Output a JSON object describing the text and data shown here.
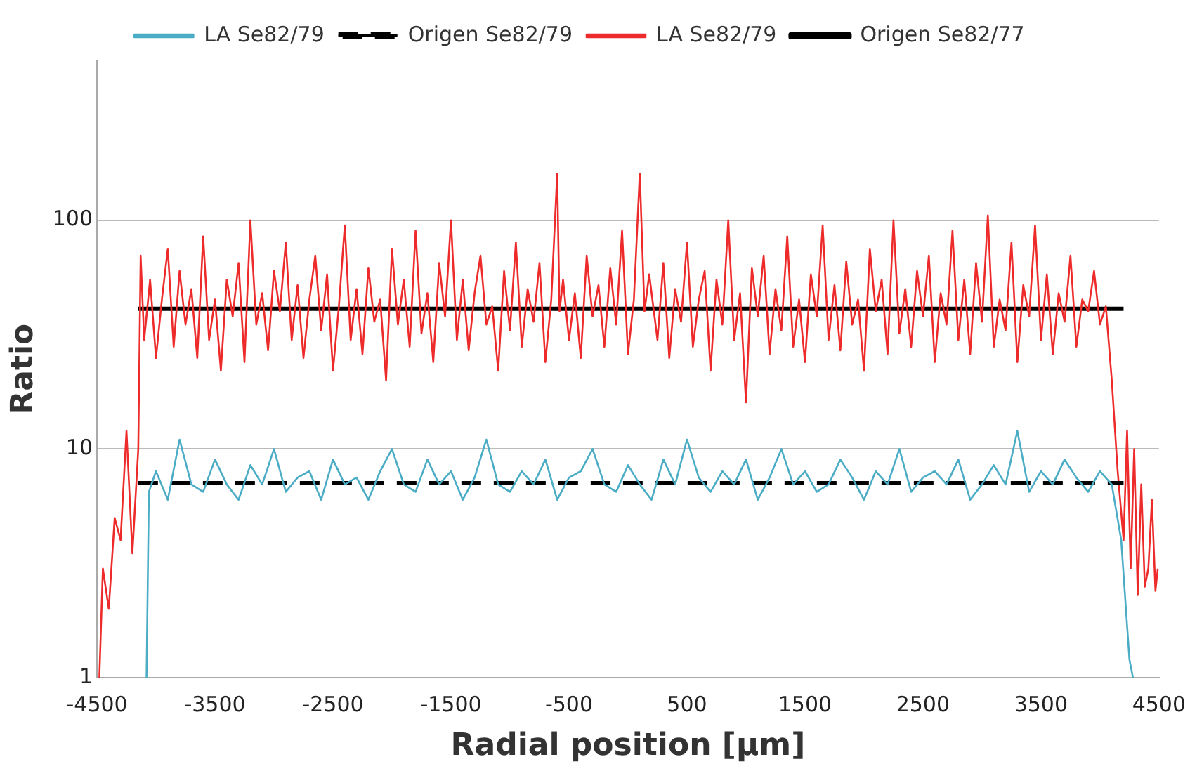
{
  "chart_data": {
    "type": "line",
    "xlabel": "Radial position [µm]",
    "ylabel": "Ratio",
    "log": "y",
    "grid": "y",
    "legend": "top",
    "marker": "none",
    "xlim": [
      -4500,
      4500
    ],
    "xticks": [
      -4500,
      -3500,
      -2500,
      -1500,
      -500,
      500,
      1500,
      2500,
      3500,
      4500
    ],
    "ylim": [
      1,
      500
    ],
    "yticks": [
      1,
      10,
      100
    ],
    "series": [
      {
        "name": "LA Se82/79",
        "color": "#4bacc6",
        "line_style": "solid",
        "x": [
          -4080,
          -4060,
          -4000,
          -3900,
          -3800,
          -3700,
          -3600,
          -3500,
          -3400,
          -3300,
          -3200,
          -3100,
          -3000,
          -2900,
          -2800,
          -2700,
          -2600,
          -2500,
          -2400,
          -2300,
          -2200,
          -2100,
          -2000,
          -1900,
          -1800,
          -1700,
          -1600,
          -1500,
          -1400,
          -1300,
          -1200,
          -1100,
          -1000,
          -900,
          -800,
          -700,
          -600,
          -500,
          -400,
          -300,
          -200,
          -100,
          0,
          100,
          200,
          300,
          400,
          500,
          600,
          700,
          800,
          900,
          1000,
          1100,
          1200,
          1300,
          1400,
          1500,
          1600,
          1700,
          1800,
          1900,
          2000,
          2100,
          2200,
          2300,
          2400,
          2500,
          2600,
          2700,
          2800,
          2900,
          3000,
          3100,
          3200,
          3300,
          3400,
          3500,
          3600,
          3700,
          3800,
          3900,
          4000,
          4100,
          4180,
          4220,
          4250,
          4280
        ],
        "values": [
          1,
          6.5,
          8,
          6,
          11,
          7,
          6.5,
          9,
          7,
          6,
          8.5,
          7,
          10,
          6.5,
          7.5,
          8,
          6,
          9,
          7,
          7.5,
          6,
          8,
          10,
          7,
          6.5,
          9,
          7,
          8,
          6,
          7.5,
          11,
          7,
          6.5,
          8,
          7,
          9,
          6,
          7.5,
          8,
          10,
          7,
          6.5,
          8.5,
          7,
          6,
          9,
          7,
          11,
          7.5,
          6.5,
          8,
          7,
          9,
          6,
          7.5,
          10,
          7,
          8,
          6.5,
          7,
          9,
          7.5,
          6,
          8,
          7,
          10,
          6.5,
          7.5,
          8,
          7,
          9,
          6,
          7,
          8.5,
          7,
          12,
          6.5,
          8,
          7,
          9,
          7.5,
          6.5,
          8,
          7,
          4,
          2,
          1.2,
          1
        ]
      },
      {
        "name": "Origen Se82/79",
        "color": "#000000",
        "line_style": "dashed",
        "x": [
          -4150,
          4200
        ],
        "values": [
          7.1,
          7.1
        ]
      },
      {
        "name": "LA Se82/79",
        "color": "#ee2b2b",
        "line_style": "solid",
        "x": [
          -4480,
          -4450,
          -4400,
          -4350,
          -4300,
          -4250,
          -4200,
          -4150,
          -4130,
          -4100,
          -4050,
          -4000,
          -3950,
          -3900,
          -3850,
          -3800,
          -3750,
          -3700,
          -3650,
          -3600,
          -3550,
          -3500,
          -3450,
          -3400,
          -3350,
          -3300,
          -3250,
          -3200,
          -3150,
          -3100,
          -3050,
          -3000,
          -2950,
          -2900,
          -2850,
          -2800,
          -2750,
          -2700,
          -2650,
          -2600,
          -2550,
          -2500,
          -2450,
          -2400,
          -2350,
          -2300,
          -2250,
          -2200,
          -2150,
          -2100,
          -2050,
          -2000,
          -1950,
          -1900,
          -1850,
          -1800,
          -1750,
          -1700,
          -1650,
          -1600,
          -1550,
          -1500,
          -1450,
          -1400,
          -1350,
          -1300,
          -1250,
          -1200,
          -1150,
          -1100,
          -1050,
          -1000,
          -950,
          -900,
          -850,
          -800,
          -750,
          -700,
          -650,
          -600,
          -580,
          -550,
          -500,
          -450,
          -400,
          -350,
          -300,
          -250,
          -200,
          -150,
          -100,
          -50,
          0,
          50,
          100,
          140,
          180,
          250,
          300,
          350,
          400,
          450,
          500,
          550,
          600,
          650,
          700,
          750,
          800,
          850,
          900,
          950,
          1000,
          1050,
          1100,
          1150,
          1200,
          1250,
          1300,
          1350,
          1400,
          1450,
          1500,
          1550,
          1600,
          1650,
          1700,
          1750,
          1800,
          1850,
          1900,
          1950,
          2000,
          2050,
          2100,
          2150,
          2200,
          2250,
          2300,
          2350,
          2400,
          2450,
          2500,
          2550,
          2600,
          2650,
          2700,
          2750,
          2800,
          2850,
          2900,
          2950,
          3000,
          3050,
          3100,
          3150,
          3200,
          3250,
          3300,
          3350,
          3400,
          3450,
          3500,
          3550,
          3600,
          3650,
          3700,
          3750,
          3800,
          3850,
          3900,
          3950,
          4000,
          4050,
          4100,
          4150,
          4200,
          4230,
          4260,
          4290,
          4320,
          4350,
          4380,
          4410,
          4440,
          4470,
          4490
        ],
        "values": [
          1,
          3,
          2,
          5,
          4,
          12,
          3.5,
          10,
          70,
          30,
          55,
          25,
          45,
          75,
          28,
          60,
          35,
          50,
          25,
          85,
          30,
          45,
          22,
          55,
          38,
          65,
          24,
          100,
          35,
          48,
          27,
          60,
          40,
          80,
          30,
          52,
          25,
          45,
          70,
          33,
          58,
          22,
          42,
          95,
          30,
          50,
          26,
          62,
          36,
          45,
          20,
          75,
          35,
          55,
          28,
          90,
          32,
          48,
          24,
          65,
          38,
          100,
          30,
          55,
          27,
          48,
          70,
          35,
          42,
          22,
          60,
          33,
          80,
          28,
          50,
          36,
          65,
          24,
          45,
          160,
          40,
          55,
          30,
          48,
          25,
          70,
          38,
          52,
          28,
          62,
          35,
          90,
          26,
          45,
          160,
          40,
          58,
          30,
          65,
          25,
          50,
          36,
          80,
          28,
          45,
          60,
          22,
          55,
          35,
          100,
          30,
          48,
          16,
          62,
          38,
          70,
          26,
          50,
          33,
          85,
          28,
          45,
          24,
          58,
          38,
          95,
          30,
          52,
          27,
          66,
          35,
          45,
          22,
          75,
          40,
          55,
          26,
          100,
          32,
          50,
          28,
          60,
          38,
          70,
          24,
          48,
          35,
          90,
          30,
          55,
          26,
          65,
          36,
          105,
          28,
          45,
          33,
          80,
          24,
          52,
          38,
          95,
          30,
          58,
          26,
          48,
          36,
          70,
          28,
          45,
          40,
          60,
          35,
          42,
          20,
          8,
          4,
          12,
          3,
          10,
          2.3,
          7,
          2.5,
          3,
          6,
          2.4,
          3
        ]
      },
      {
        "name": "Origen Se82/77",
        "color": "#000000",
        "line_style": "solid",
        "x": [
          -4150,
          4200
        ],
        "values": [
          41,
          41
        ]
      }
    ]
  }
}
